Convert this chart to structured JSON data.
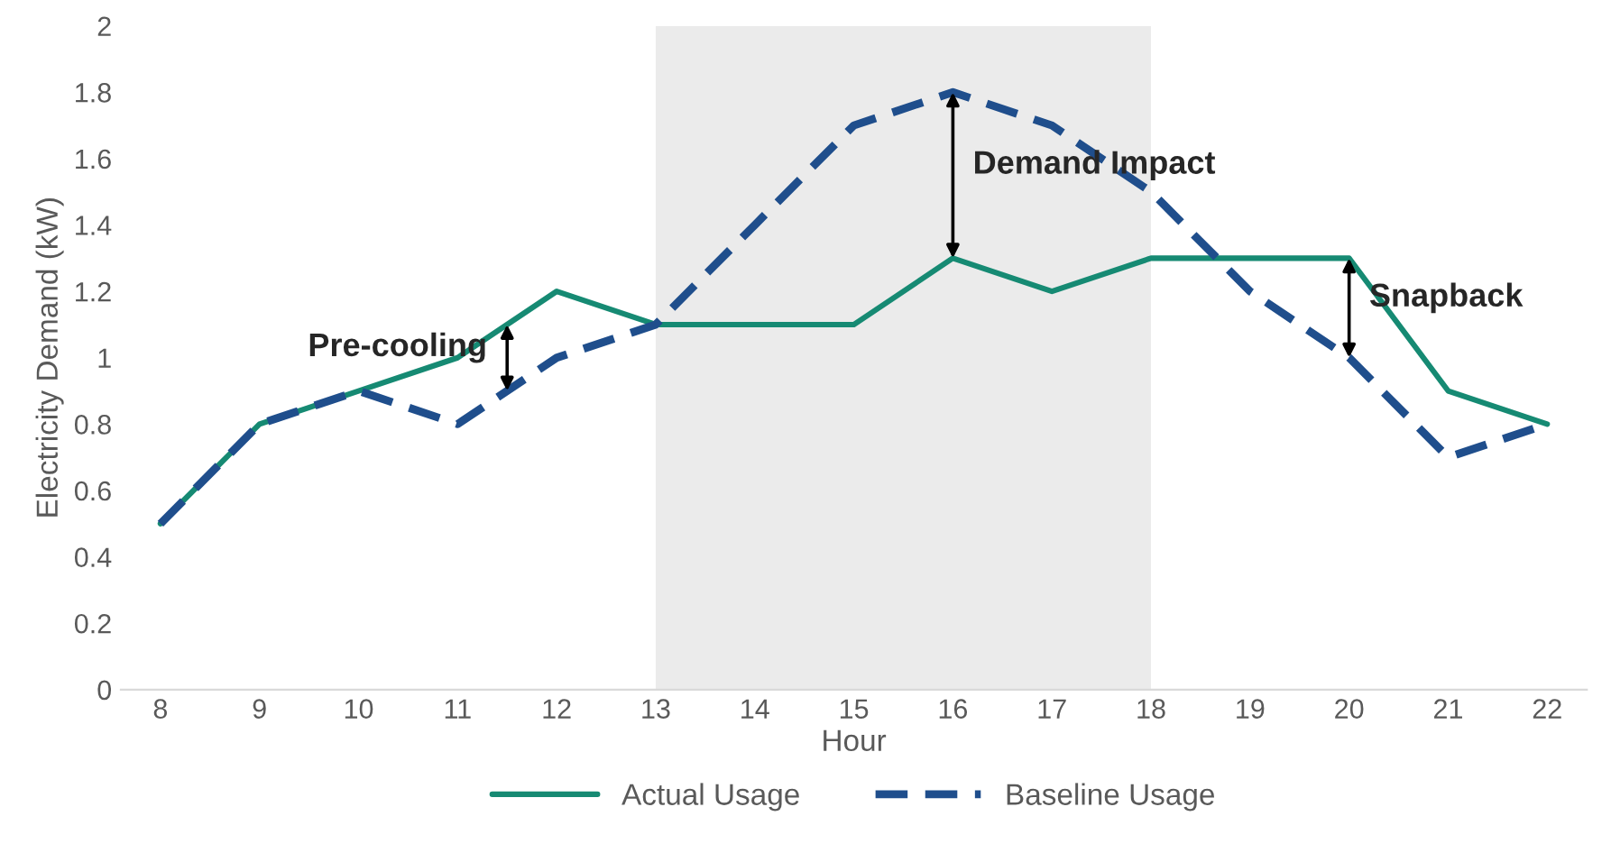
{
  "chart_data": {
    "type": "line",
    "xlabel": "Hour",
    "ylabel": "Electricity Demand (kW)",
    "x": [
      8,
      9,
      10,
      11,
      12,
      13,
      14,
      15,
      16,
      17,
      18,
      19,
      20,
      21,
      22
    ],
    "series": [
      {
        "name": "Actual Usage",
        "color": "#168a73",
        "line_style": "solid",
        "values": [
          0.5,
          0.8,
          0.9,
          1.0,
          1.2,
          1.1,
          1.1,
          1.1,
          1.3,
          1.2,
          1.3,
          1.3,
          1.3,
          0.9,
          0.8
        ]
      },
      {
        "name": "Baseline Usage",
        "color": "#1f4e8c",
        "line_style": "dashed",
        "values": [
          0.5,
          0.8,
          0.9,
          0.8,
          1.0,
          1.1,
          1.4,
          1.7,
          1.8,
          1.7,
          1.5,
          1.2,
          1.0,
          0.7,
          0.8
        ]
      }
    ],
    "xlim": [
      7.6,
      22.4
    ],
    "xticks": [
      8,
      9,
      10,
      11,
      12,
      13,
      14,
      15,
      16,
      17,
      18,
      19,
      20,
      21,
      22
    ],
    "ylim": [
      0,
      2
    ],
    "yticks": [
      0,
      0.2,
      0.4,
      0.6,
      0.8,
      1,
      1.2,
      1.4,
      1.6,
      1.8,
      2
    ],
    "bands": [
      {
        "axis": "x",
        "from": 13,
        "to": 18,
        "color": "#ebebeb"
      }
    ],
    "annotations": [
      {
        "text": "Pre-cooling",
        "x": 11.5,
        "y": 1.1
      },
      {
        "text": "Demand Impact",
        "x": 16,
        "y": 1.8
      },
      {
        "text": "Snapback",
        "x": 20,
        "y": 1.3
      }
    ],
    "grid": false,
    "legend": "bottom",
    "marker": "none"
  }
}
